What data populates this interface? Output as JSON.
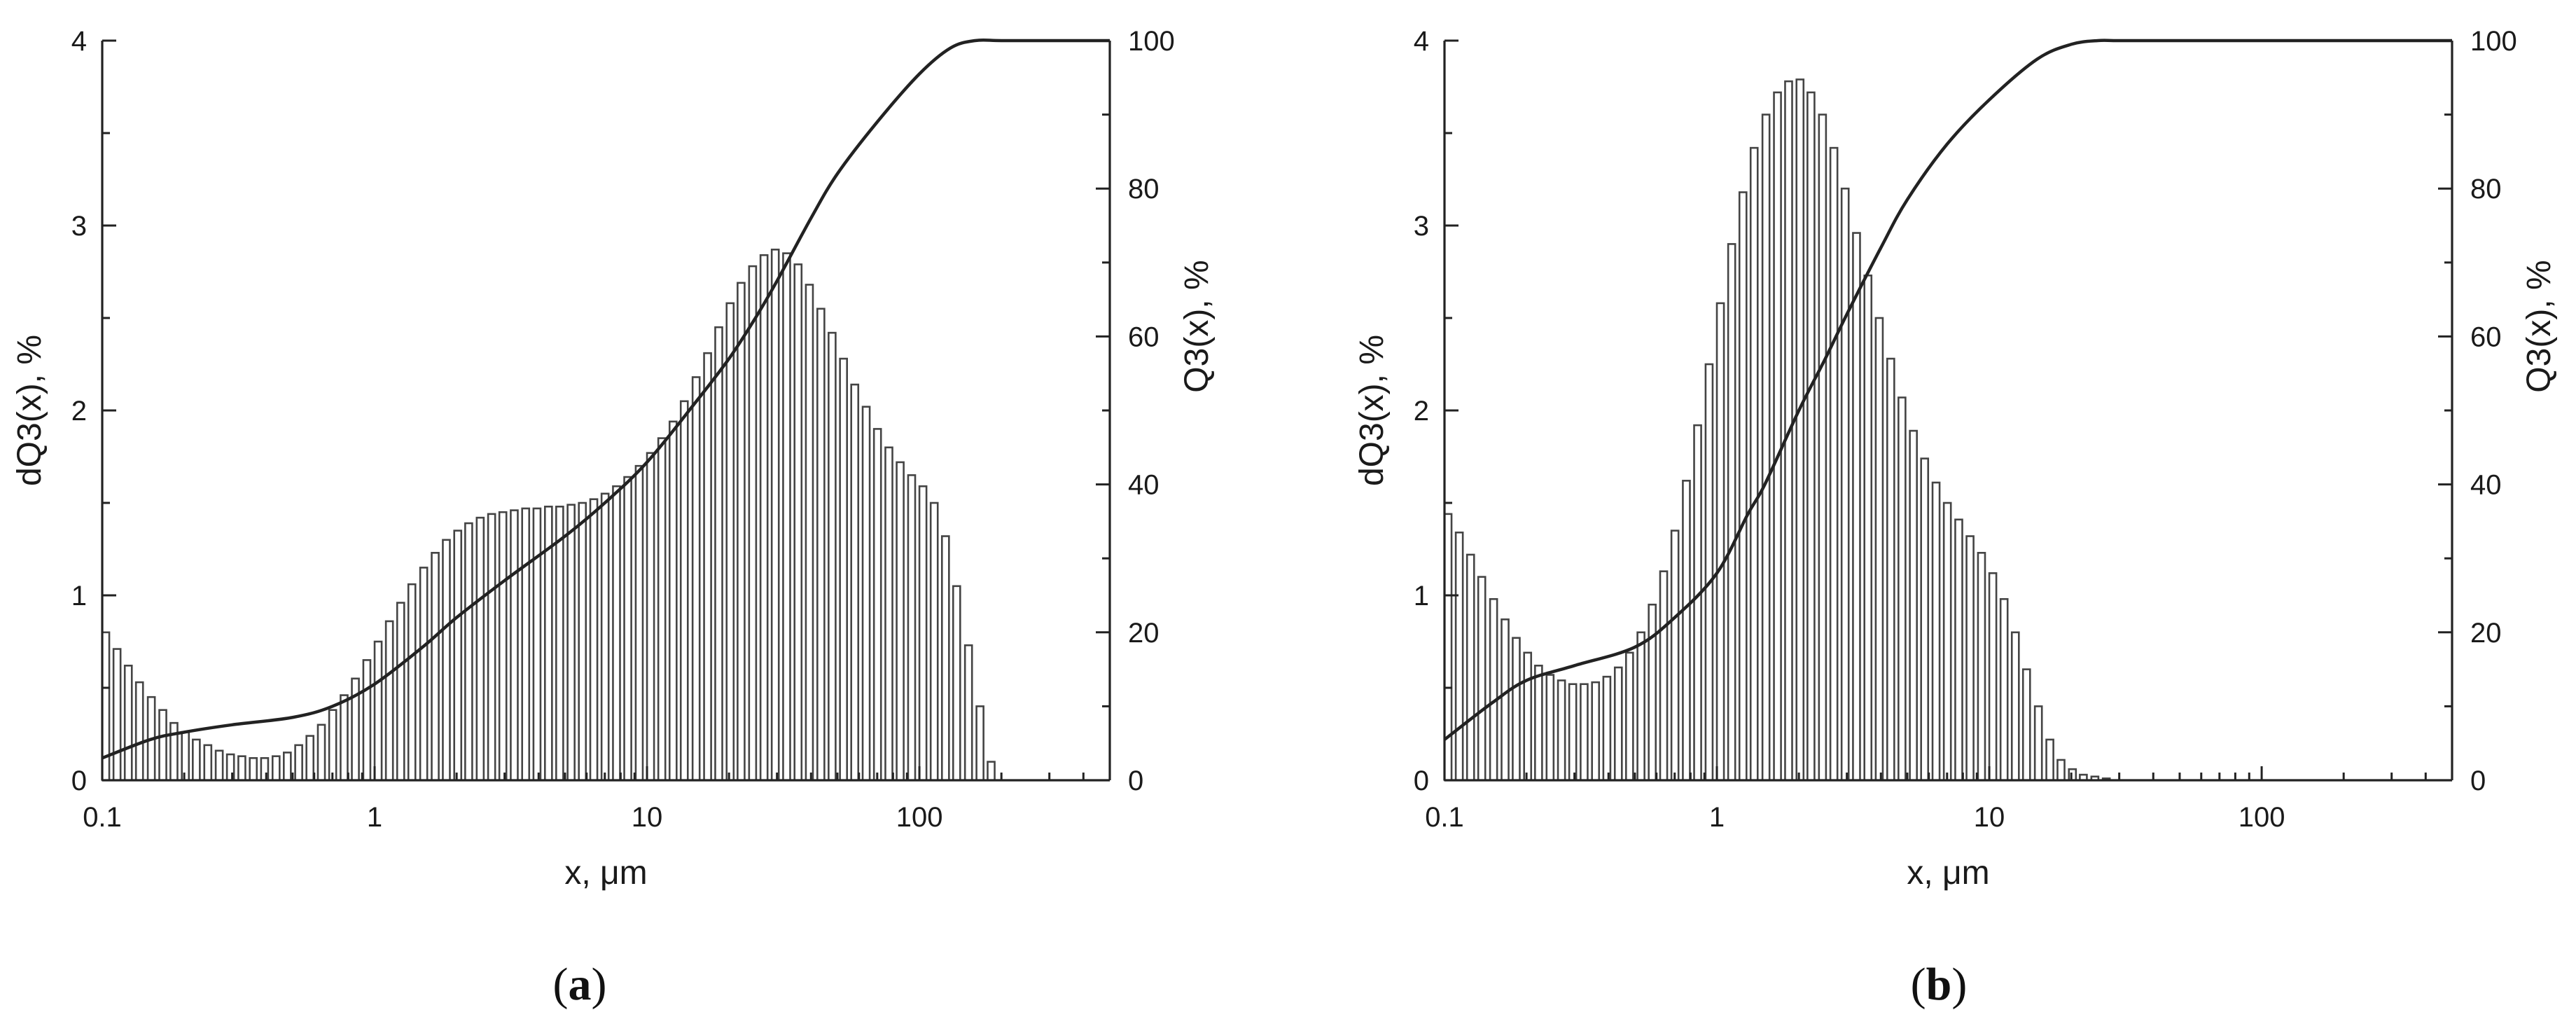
{
  "figure": {
    "panels": [
      {
        "label_open": "(",
        "label_letter": "a",
        "label_close": ")"
      },
      {
        "label_open": "(",
        "label_letter": "b",
        "label_close": ")"
      }
    ]
  },
  "chart_data": [
    {
      "type": "bar",
      "panel": "a",
      "xlabel": "x, μm",
      "ylabel": "dQ3(x), %",
      "y2label": "Q3(x), %",
      "xscale": "log",
      "xlim": [
        0.1,
        500
      ],
      "ylim": [
        0,
        4
      ],
      "y2lim": [
        0,
        100
      ],
      "x_ticks": [
        "0.1",
        "1",
        "10",
        "100"
      ],
      "x_tick_values": [
        0.1,
        1,
        10,
        100
      ],
      "y_ticks": [
        "0",
        "1",
        "2",
        "3",
        "4"
      ],
      "y2_ticks": [
        "0",
        "20",
        "40",
        "60",
        "80",
        "100"
      ],
      "grid": false,
      "series": [
        {
          "kind": "bars",
          "axis": "left",
          "bins_per_decade": 24,
          "x": [
            0.1,
            0.11,
            0.121,
            0.133,
            0.147,
            0.162,
            0.178,
            0.196,
            0.215,
            0.237,
            0.261,
            0.287,
            0.316,
            0.348,
            0.383,
            0.422,
            0.464,
            0.511,
            0.562,
            0.619,
            0.681,
            0.75,
            0.825,
            0.909,
            1.0,
            1.1,
            1.21,
            1.33,
            1.47,
            1.62,
            1.78,
            1.96,
            2.15,
            2.37,
            2.61,
            2.87,
            3.16,
            3.48,
            3.83,
            4.22,
            4.64,
            5.11,
            5.62,
            6.19,
            6.81,
            7.5,
            8.25,
            9.09,
            10.0,
            11.0,
            12.1,
            13.3,
            14.7,
            16.2,
            17.8,
            19.6,
            21.5,
            23.7,
            26.1,
            28.7,
            31.6,
            34.8,
            38.3,
            42.2,
            46.4,
            51.1,
            56.2,
            61.9,
            68.1,
            75.0,
            82.5,
            90.9,
            100.0,
            110.0,
            121.0,
            133.0,
            147.0,
            162.0,
            178.0
          ],
          "values": [
            0.8,
            0.71,
            0.62,
            0.53,
            0.45,
            0.38,
            0.31,
            0.26,
            0.22,
            0.19,
            0.16,
            0.14,
            0.13,
            0.12,
            0.12,
            0.13,
            0.15,
            0.19,
            0.24,
            0.3,
            0.38,
            0.46,
            0.55,
            0.65,
            0.75,
            0.86,
            0.96,
            1.06,
            1.15,
            1.23,
            1.3,
            1.35,
            1.39,
            1.42,
            1.44,
            1.45,
            1.46,
            1.47,
            1.47,
            1.48,
            1.48,
            1.49,
            1.5,
            1.52,
            1.55,
            1.59,
            1.64,
            1.7,
            1.77,
            1.85,
            1.94,
            2.05,
            2.18,
            2.31,
            2.45,
            2.58,
            2.69,
            2.78,
            2.84,
            2.87,
            2.85,
            2.79,
            2.68,
            2.55,
            2.42,
            2.28,
            2.14,
            2.02,
            1.9,
            1.8,
            1.72,
            1.65,
            1.59,
            1.5,
            1.32,
            1.05,
            0.73,
            0.4,
            0.1
          ]
        },
        {
          "kind": "line",
          "axis": "right",
          "x": [
            0.1,
            0.15,
            0.2,
            0.3,
            0.5,
            0.7,
            1.0,
            1.5,
            2.0,
            3.0,
            5.0,
            7.0,
            10.0,
            15.0,
            20.0,
            25.0,
            30.0,
            40.0,
            50.0,
            70.0,
            100.0,
            130.0,
            160.0,
            200.0,
            300.0,
            500.0
          ],
          "values": [
            3,
            5.5,
            6.5,
            7.5,
            8.5,
            10,
            13,
            18,
            22,
            27,
            33,
            37.5,
            43,
            51,
            57,
            62.5,
            67.5,
            76,
            82,
            89,
            95.5,
            99,
            100,
            100,
            100,
            100
          ]
        }
      ]
    },
    {
      "type": "bar",
      "panel": "b",
      "xlabel": "x, μm",
      "ylabel": "dQ3(x), %",
      "y2label": "Q3(x), %",
      "xscale": "log",
      "xlim": [
        0.1,
        500
      ],
      "ylim": [
        0,
        4
      ],
      "y2lim": [
        0,
        100
      ],
      "x_ticks": [
        "0.1",
        "1",
        "10",
        "100"
      ],
      "x_tick_values": [
        0.1,
        1,
        10,
        100
      ],
      "y_ticks": [
        "0",
        "1",
        "2",
        "3",
        "4"
      ],
      "y2_ticks": [
        "0",
        "20",
        "40",
        "60",
        "80",
        "100"
      ],
      "grid": false,
      "series": [
        {
          "kind": "bars",
          "axis": "left",
          "bins_per_decade": 24,
          "x": [
            0.1,
            0.11,
            0.121,
            0.133,
            0.147,
            0.162,
            0.178,
            0.196,
            0.215,
            0.237,
            0.261,
            0.287,
            0.316,
            0.348,
            0.383,
            0.422,
            0.464,
            0.511,
            0.562,
            0.619,
            0.681,
            0.75,
            0.825,
            0.909,
            1.0,
            1.1,
            1.21,
            1.33,
            1.47,
            1.62,
            1.78,
            1.96,
            2.15,
            2.37,
            2.61,
            2.87,
            3.16,
            3.48,
            3.83,
            4.22,
            4.64,
            5.11,
            5.62,
            6.19,
            6.81,
            7.5,
            8.25,
            9.09,
            10.0,
            11.0,
            12.1,
            13.3,
            14.7,
            16.2,
            17.8,
            19.6,
            21.5,
            23.7,
            26.1
          ],
          "values": [
            1.44,
            1.34,
            1.22,
            1.1,
            0.98,
            0.87,
            0.77,
            0.69,
            0.62,
            0.57,
            0.54,
            0.52,
            0.52,
            0.53,
            0.56,
            0.61,
            0.69,
            0.8,
            0.95,
            1.13,
            1.35,
            1.62,
            1.92,
            2.25,
            2.58,
            2.9,
            3.18,
            3.42,
            3.6,
            3.72,
            3.78,
            3.79,
            3.72,
            3.6,
            3.42,
            3.2,
            2.96,
            2.73,
            2.5,
            2.28,
            2.07,
            1.89,
            1.74,
            1.61,
            1.5,
            1.41,
            1.32,
            1.23,
            1.12,
            0.98,
            0.8,
            0.6,
            0.4,
            0.22,
            0.11,
            0.06,
            0.03,
            0.02,
            0.01
          ]
        },
        {
          "kind": "line",
          "axis": "right",
          "x": [
            0.1,
            0.15,
            0.2,
            0.3,
            0.5,
            0.7,
            1.0,
            1.3,
            1.5,
            2.0,
            2.5,
            3.0,
            4.0,
            5.0,
            7.0,
            10.0,
            15.0,
            20.0,
            25.0,
            30.0,
            50.0,
            100.0,
            200.0,
            500.0
          ],
          "values": [
            5.5,
            10.5,
            13.5,
            15.5,
            18,
            22,
            28,
            36,
            40,
            50,
            57,
            63,
            72,
            78.5,
            86,
            92,
            97.5,
            99.5,
            100,
            100,
            100,
            100,
            100,
            100
          ]
        }
      ]
    }
  ]
}
